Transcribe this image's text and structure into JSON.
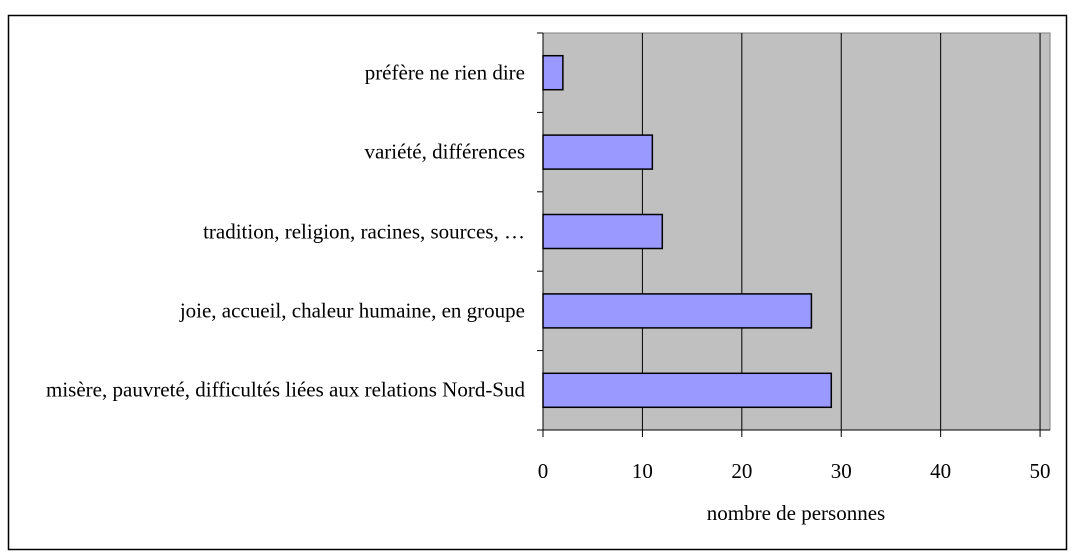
{
  "chart_data": {
    "type": "bar",
    "orientation": "horizontal",
    "categories": [
      "préfère ne rien dire",
      "variété, différences",
      "tradition, religion, racines, sources, …",
      "joie, accueil, chaleur humaine, en groupe",
      "misère, pauvreté, difficultés liées aux relations Nord-Sud"
    ],
    "values": [
      2,
      11,
      12,
      27,
      29
    ],
    "color": "#9999ff",
    "x_label": "nombre de personnes",
    "xlim": [
      0,
      51
    ],
    "xticks": [
      0,
      10,
      20,
      30,
      40,
      50
    ],
    "grid": true
  }
}
